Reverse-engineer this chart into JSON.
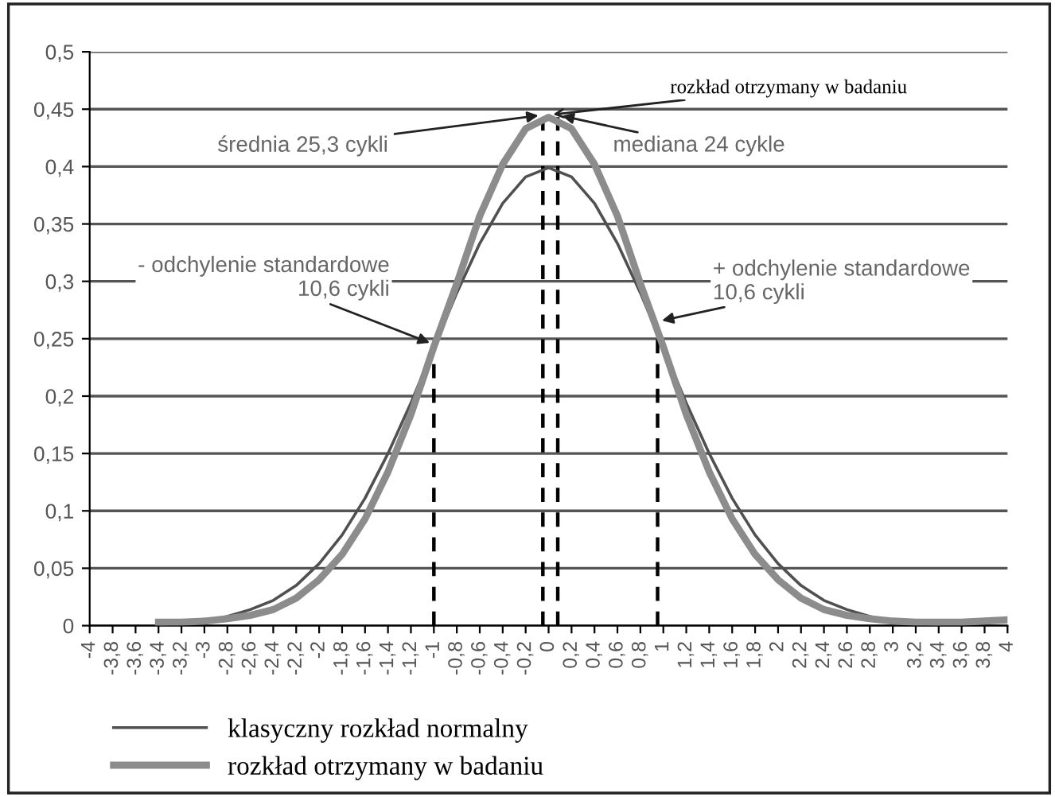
{
  "chart_data": {
    "type": "line",
    "series": [
      {
        "name": "klasyczny rozkład normalny",
        "color": "#505050",
        "x": [
          -3.4,
          -3.2,
          -3.0,
          -2.8,
          -2.6,
          -2.4,
          -2.2,
          -2.0,
          -1.8,
          -1.6,
          -1.4,
          -1.2,
          -1.0,
          -0.8,
          -0.6,
          -0.4,
          -0.2,
          0,
          0.2,
          0.4,
          0.6,
          0.8,
          1.0,
          1.2,
          1.4,
          1.6,
          1.8,
          2.0,
          2.2,
          2.4,
          2.6,
          2.8,
          3.0,
          3.2,
          3.4
        ],
        "values": [
          0.001,
          0.002,
          0.004,
          0.008,
          0.014,
          0.022,
          0.035,
          0.054,
          0.079,
          0.111,
          0.15,
          0.194,
          0.242,
          0.29,
          0.333,
          0.368,
          0.391,
          0.399,
          0.391,
          0.368,
          0.333,
          0.29,
          0.242,
          0.194,
          0.15,
          0.111,
          0.079,
          0.054,
          0.035,
          0.022,
          0.014,
          0.008,
          0.004,
          0.002,
          0.001
        ]
      },
      {
        "name": "rozkład otrzymany w badaniu",
        "color": "#8c8c8c",
        "x": [
          -3.4,
          -3.2,
          -3.0,
          -2.8,
          -2.6,
          -2.4,
          -2.2,
          -2.0,
          -1.8,
          -1.6,
          -1.4,
          -1.2,
          -1.0,
          -0.8,
          -0.6,
          -0.4,
          -0.2,
          0,
          0.2,
          0.4,
          0.6,
          0.8,
          1.0,
          1.2,
          1.4,
          1.6,
          1.8,
          2.0,
          2.2,
          2.4,
          2.6,
          2.8,
          3.0,
          3.2,
          3.4,
          3.6,
          3.8,
          4.0
        ],
        "values": [
          0.003,
          0.003,
          0.004,
          0.006,
          0.009,
          0.014,
          0.024,
          0.04,
          0.062,
          0.093,
          0.134,
          0.184,
          0.243,
          0.298,
          0.357,
          0.402,
          0.433,
          0.443,
          0.433,
          0.402,
          0.357,
          0.298,
          0.243,
          0.184,
          0.134,
          0.093,
          0.062,
          0.04,
          0.024,
          0.014,
          0.009,
          0.006,
          0.004,
          0.003,
          0.003,
          0.003,
          0.004,
          0.005
        ]
      },
      {
        "color": "#000000",
        "line_style": "dashed",
        "x": [
          -1,
          -1
        ],
        "values": [
          0,
          0.235
        ]
      },
      {
        "color": "#000000",
        "line_style": "dashed",
        "x": [
          -0.05,
          -0.05
        ],
        "values": [
          0,
          0.443
        ]
      },
      {
        "color": "#000000",
        "line_style": "dashed",
        "x": [
          0.08,
          0.08
        ],
        "values": [
          0,
          0.443
        ]
      },
      {
        "color": "#000000",
        "line_style": "dashed",
        "x": [
          0.95,
          0.95
        ],
        "values": [
          0,
          0.25
        ]
      }
    ],
    "xlim": [
      -4,
      4
    ],
    "xticks": [
      {
        "value": -4,
        "label": "-4"
      },
      {
        "value": -3.8,
        "label": "-3,8"
      },
      {
        "value": -3.6,
        "label": "-3,6"
      },
      {
        "value": -3.4,
        "label": "-3,4"
      },
      {
        "value": -3.2,
        "label": "-3,2"
      },
      {
        "value": -3,
        "label": "-3"
      },
      {
        "value": -2.8,
        "label": "-2,8"
      },
      {
        "value": -2.6,
        "label": "-2,6"
      },
      {
        "value": -2.4,
        "label": "-2,4"
      },
      {
        "value": -2.2,
        "label": "-2,2"
      },
      {
        "value": -2,
        "label": "-2"
      },
      {
        "value": -1.8,
        "label": "-1,8"
      },
      {
        "value": -1.6,
        "label": "-1,6"
      },
      {
        "value": -1.4,
        "label": "-1,4"
      },
      {
        "value": -1.2,
        "label": "-1,2"
      },
      {
        "value": -1,
        "label": "-1"
      },
      {
        "value": -0.8,
        "label": "-0,8"
      },
      {
        "value": -0.6,
        "label": "-0,6"
      },
      {
        "value": -0.4,
        "label": "-0,4"
      },
      {
        "value": -0.2,
        "label": "-0,2"
      },
      {
        "value": 0,
        "label": "0"
      },
      {
        "value": 0.2,
        "label": "0,2"
      },
      {
        "value": 0.4,
        "label": "0,4"
      },
      {
        "value": 0.6,
        "label": "0,6"
      },
      {
        "value": 0.8,
        "label": "0,8"
      },
      {
        "value": 1,
        "label": "1"
      },
      {
        "value": 1.2,
        "label": "1,2"
      },
      {
        "value": 1.4,
        "label": "1,4"
      },
      {
        "value": 1.6,
        "label": "1,6"
      },
      {
        "value": 1.8,
        "label": "1,8"
      },
      {
        "value": 2,
        "label": "2"
      },
      {
        "value": 2.2,
        "label": "2,2"
      },
      {
        "value": 2.4,
        "label": "2,4"
      },
      {
        "value": 2.6,
        "label": "2,6"
      },
      {
        "value": 2.8,
        "label": "2,8"
      },
      {
        "value": 3,
        "label": "3"
      },
      {
        "value": 3.2,
        "label": "3,2"
      },
      {
        "value": 3.4,
        "label": "3,4"
      },
      {
        "value": 3.6,
        "label": "3,6"
      },
      {
        "value": 3.8,
        "label": "3,8"
      },
      {
        "value": 4,
        "label": "4"
      }
    ],
    "ylim": [
      0,
      0.5
    ],
    "yticks": [
      0,
      {
        "value": 0.05,
        "label": "0,05"
      },
      {
        "value": 0.1,
        "label": "0,1"
      },
      {
        "value": 0.15,
        "label": "0,15"
      },
      {
        "value": 0.2,
        "label": "0,2"
      },
      {
        "value": 0.25,
        "label": "0,25"
      },
      {
        "value": 0.3,
        "label": "0,3"
      },
      {
        "value": 0.35,
        "label": "0,35"
      },
      {
        "value": 0.4,
        "label": "0,4"
      },
      {
        "value": 0.45,
        "label": "0,45"
      },
      {
        "value": 0.5,
        "label": "0,5"
      }
    ],
    "grid": "y",
    "legend": "bottom left",
    "annotations": [
      {
        "text": "rozkład otrzymany w badaniu",
        "x": 0,
        "y": 0.445
      },
      {
        "text": "średnia 25,3 cykli",
        "x": -0.05,
        "y": 0.445
      },
      {
        "text": "mediana 24 cykle",
        "x": 0.08,
        "y": 0.445
      },
      {
        "text": "- odchylenie standardowe\n10,6 cykli",
        "x": -1,
        "y": 0.245
      },
      {
        "text": "+ odchylenie standardowe\n10,6 cykli",
        "x": 0.95,
        "y": 0.265
      }
    ]
  }
}
